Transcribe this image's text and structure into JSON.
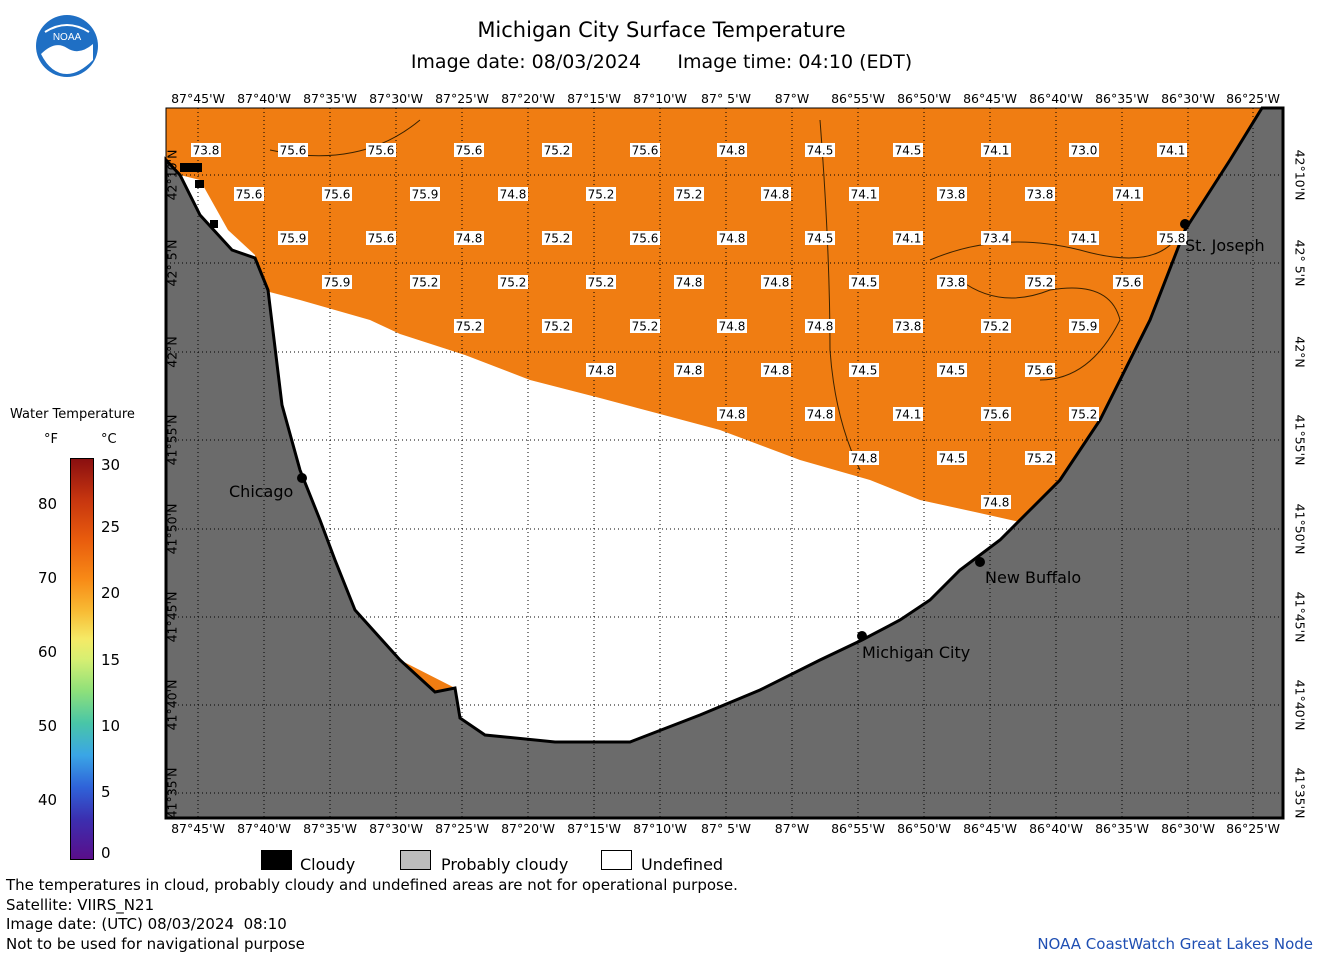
{
  "header": {
    "title": "Michigan City Surface Temperature",
    "subtitle_date_label": "Image date: 08/03/2024",
    "subtitle_time_label": "Image time: 04:10 (EDT)",
    "logo_text": "NOAA"
  },
  "map": {
    "lon_labels": [
      "87°45'W",
      "87°40'W",
      "87°35'W",
      "87°30'W",
      "87°25'W",
      "87°20'W",
      "87°15'W",
      "87°10'W",
      "87° 5'W",
      "87°W",
      "86°55'W",
      "86°50'W",
      "86°45'W",
      "86°40'W",
      "86°35'W",
      "86°30'W",
      "86°25'W"
    ],
    "lat_labels": [
      "42°10'N",
      "42° 5'N",
      "42°N",
      "41°55'N",
      "41°50'N",
      "41°45'N",
      "41°40'N",
      "41°35'N"
    ],
    "colors": {
      "land": "#6b6b6b",
      "water_warm": "#f07d12",
      "undefined": "#ffffff",
      "cloud": "#000000"
    },
    "cities": [
      {
        "name": "Chicago"
      },
      {
        "name": "St. Joseph"
      },
      {
        "name": "New Buffalo"
      },
      {
        "name": "Michigan City"
      }
    ],
    "temperature_labels": [
      "73.8",
      "75.6",
      "75.6",
      "75.6",
      "75.2",
      "75.6",
      "74.8",
      "74.5",
      "74.5",
      "74.1",
      "73.0",
      "74.1",
      "75.6",
      "75.6",
      "75.9",
      "74.8",
      "75.2",
      "75.2",
      "74.8",
      "74.1",
      "73.8",
      "73.8",
      "74.1",
      "75.9",
      "75.6",
      "74.8",
      "75.2",
      "75.6",
      "74.8",
      "74.5",
      "74.1",
      "73.4",
      "74.1",
      "75.8",
      "75.9",
      "75.2",
      "75.2",
      "75.2",
      "74.8",
      "74.8",
      "74.5",
      "73.8",
      "75.2",
      "75.6",
      "75.2",
      "75.2",
      "75.2",
      "74.8",
      "74.8",
      "73.8",
      "75.2",
      "75.9",
      "74.8",
      "74.8",
      "74.8",
      "74.5",
      "74.5",
      "75.6",
      "74.8",
      "74.8",
      "74.1",
      "75.6",
      "75.2",
      "74.8",
      "74.5",
      "75.2",
      "74.8"
    ]
  },
  "legend": {
    "title": "Water Temperature",
    "unit_f": "°F",
    "unit_c": "°C",
    "f_ticks": [
      "80",
      "70",
      "60",
      "50",
      "40"
    ],
    "c_ticks": [
      "30",
      "25",
      "20",
      "15",
      "10",
      "5",
      "0"
    ]
  },
  "key": {
    "cloudy": "Cloudy",
    "probably_cloudy": "Probably cloudy",
    "undefined": "Undefined"
  },
  "footer": {
    "line1": "The temperatures in cloud, probably cloudy and undefined areas are not for operational purpose.",
    "line2": "Satellite: VIIRS_N21",
    "line3": "Image date: (UTC) 08/03/2024  08:10",
    "line4": "Not to be used for navigational purpose",
    "credit": "NOAA CoastWatch Great Lakes Node"
  }
}
